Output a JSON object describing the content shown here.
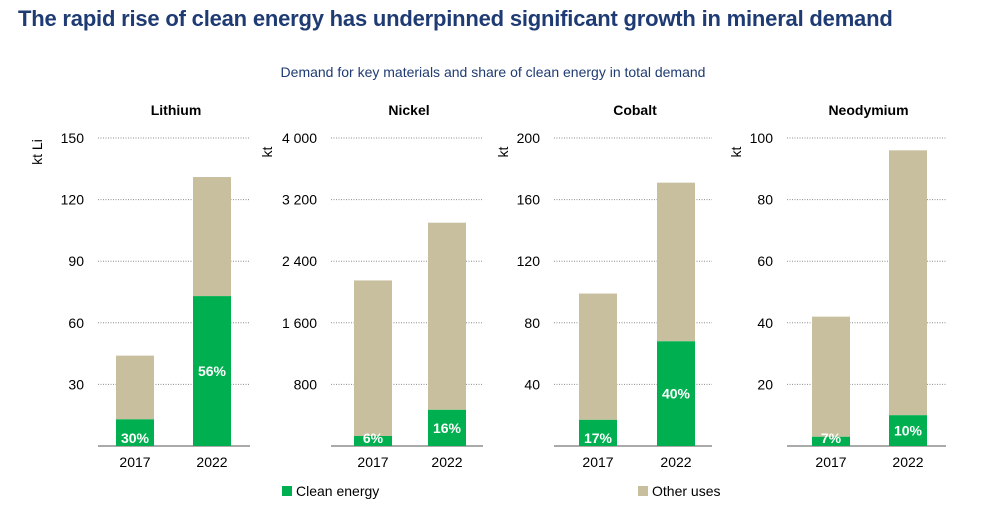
{
  "title": "The rapid rise of clean energy has underpinned significant growth in mineral demand",
  "subtitle": "Demand for key materials and share of clean energy in total demand",
  "legend": {
    "clean_label": "Clean energy",
    "other_label": "Other uses"
  },
  "colors": {
    "clean": "#00b050",
    "other": "#c8bf9f",
    "title": "#1f3b73",
    "grid": "#8c8c8c"
  },
  "chart_data": [
    {
      "type": "bar",
      "title": "Lithium",
      "ylabel": "kt Li",
      "categories": [
        "2017",
        "2022"
      ],
      "ylim": [
        0,
        150
      ],
      "ticks": [
        30,
        60,
        90,
        120,
        150
      ],
      "tick_labels": [
        "30",
        "60",
        "90",
        "120",
        "150"
      ],
      "series": [
        {
          "name": "Clean energy",
          "values": [
            13,
            73
          ]
        },
        {
          "name": "Other uses",
          "values": [
            31,
            58
          ]
        }
      ],
      "share_labels": [
        "30%",
        "56%"
      ]
    },
    {
      "type": "bar",
      "title": "Nickel",
      "ylabel": "kt",
      "categories": [
        "2017",
        "2022"
      ],
      "ylim": [
        0,
        4000
      ],
      "ticks": [
        800,
        1600,
        2400,
        3200,
        4000
      ],
      "tick_labels": [
        "800",
        "1 600",
        "2 400",
        "3 200",
        "4 000"
      ],
      "series": [
        {
          "name": "Clean energy",
          "values": [
            130,
            470
          ]
        },
        {
          "name": "Other uses",
          "values": [
            2020,
            2430
          ]
        }
      ],
      "share_labels": [
        "6%",
        "16%"
      ]
    },
    {
      "type": "bar",
      "title": "Cobalt",
      "ylabel": "kt",
      "categories": [
        "2017",
        "2022"
      ],
      "ylim": [
        0,
        200
      ],
      "ticks": [
        40,
        80,
        120,
        160,
        200
      ],
      "tick_labels": [
        "40",
        "80",
        "120",
        "160",
        "200"
      ],
      "series": [
        {
          "name": "Clean energy",
          "values": [
            17,
            68
          ]
        },
        {
          "name": "Other uses",
          "values": [
            82,
            103
          ]
        }
      ],
      "share_labels": [
        "17%",
        "40%"
      ]
    },
    {
      "type": "bar",
      "title": "Neodymium",
      "ylabel": "kt",
      "categories": [
        "2017",
        "2022"
      ],
      "ylim": [
        0,
        100
      ],
      "ticks": [
        20,
        40,
        60,
        80,
        100
      ],
      "tick_labels": [
        "20",
        "40",
        "60",
        "80",
        "100"
      ],
      "series": [
        {
          "name": "Clean energy",
          "values": [
            3,
            10
          ]
        },
        {
          "name": "Other uses",
          "values": [
            39,
            86
          ]
        }
      ],
      "share_labels": [
        "7%",
        "10%"
      ]
    }
  ]
}
